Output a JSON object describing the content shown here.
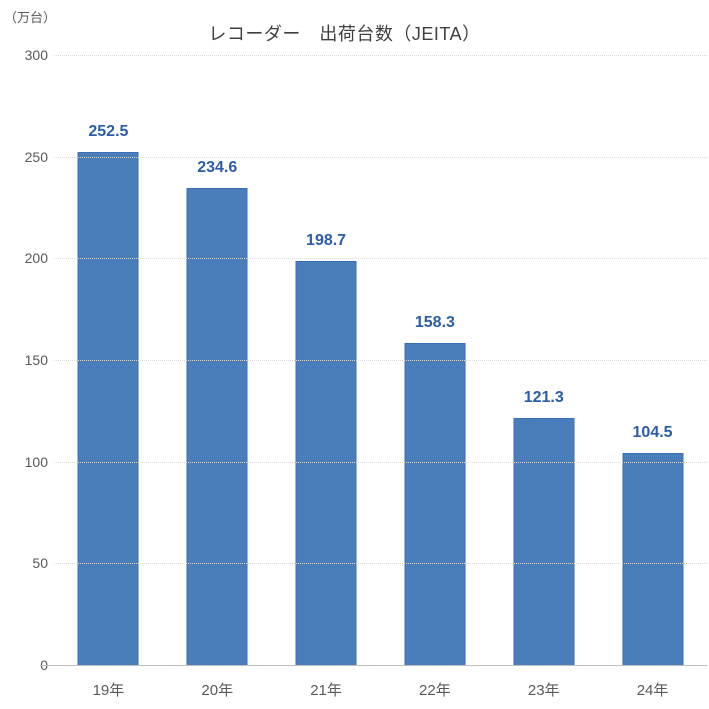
{
  "title": "レコーダー　出荷台数（JEITA）",
  "unit_label": "（万台）",
  "colors": {
    "bar_fill": "#4a7ebb",
    "bar_border": "#3a6eb5",
    "value_label": "#2a5caa",
    "axis_text": "#595959",
    "title_text": "#404040",
    "grid": "#d9d9d9",
    "baseline": "#bfbfbf"
  },
  "chart_data": {
    "type": "bar",
    "title": "レコーダー　出荷台数（JEITA）",
    "categories": [
      "19年",
      "20年",
      "21年",
      "22年",
      "23年",
      "24年"
    ],
    "values": [
      252.5,
      234.6,
      198.7,
      158.3,
      121.3,
      104.5
    ],
    "data_labels": [
      "252.5",
      "234.6",
      "198.7",
      "158.3",
      "121.3",
      "104.5"
    ],
    "xlabel": "",
    "ylabel": "（万台）",
    "ylim": [
      0,
      300
    ],
    "yticks": [
      0,
      50,
      100,
      150,
      200,
      250,
      300
    ],
    "grid": "horizontal-dotted",
    "legend": "none",
    "bar_color": "#4a7ebb"
  }
}
